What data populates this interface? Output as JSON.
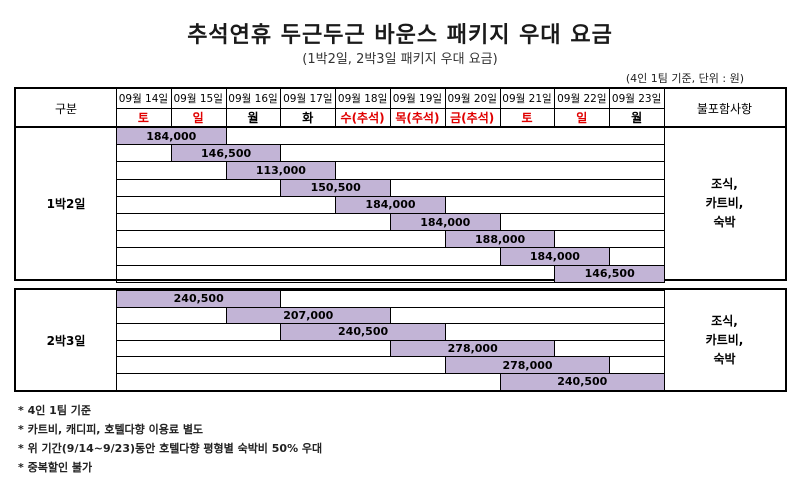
{
  "title": "추석연휴 두근두근 바운스 패키지 우대 요금",
  "subtitle": "(1박2일, 2박3일 패키지 우대 요금)",
  "basis": "(4인 1팀 기준, 단위 : 원)",
  "header": {
    "category_label": "구분",
    "excluded_label": "불포함사항",
    "dates": [
      "09월 14일",
      "09월 15일",
      "09월 16일",
      "09월 17일",
      "09월 18일",
      "09월 19일",
      "09월 20일",
      "09월 21일",
      "09월 22일",
      "09월 23일"
    ],
    "days": [
      "토",
      "일",
      "월",
      "화",
      "수(추석)",
      "목(추석)",
      "금(추석)",
      "토",
      "일",
      "월"
    ],
    "day_red": [
      true,
      true,
      false,
      false,
      true,
      true,
      true,
      true,
      true,
      false
    ]
  },
  "packages": [
    {
      "label": "1박2일",
      "excluded": [
        "조식,",
        "카트비,",
        "숙박"
      ],
      "rows": [
        {
          "start": 0,
          "span": 2,
          "price": "184,000"
        },
        {
          "start": 1,
          "span": 2,
          "price": "146,500"
        },
        {
          "start": 2,
          "span": 2,
          "price": "113,000"
        },
        {
          "start": 3,
          "span": 2,
          "price": "150,500"
        },
        {
          "start": 4,
          "span": 2,
          "price": "184,000"
        },
        {
          "start": 5,
          "span": 2,
          "price": "184,000"
        },
        {
          "start": 6,
          "span": 2,
          "price": "188,000"
        },
        {
          "start": 7,
          "span": 2,
          "price": "184,000"
        },
        {
          "start": 8,
          "span": 2,
          "price": "146,500"
        }
      ]
    },
    {
      "label": "2박3일",
      "excluded": [
        "조식,",
        "카트비,",
        "숙박"
      ],
      "rows": [
        {
          "start": 0,
          "span": 3,
          "price": "240,500"
        },
        {
          "start": 2,
          "span": 3,
          "price": "207,000"
        },
        {
          "start": 3,
          "span": 3,
          "price": "240,500"
        },
        {
          "start": 5,
          "span": 3,
          "price": "278,000"
        },
        {
          "start": 6,
          "span": 3,
          "price": "278,000"
        },
        {
          "start": 7,
          "span": 3,
          "price": "240,500"
        }
      ]
    }
  ],
  "notes": [
    "* 4인 1팀 기준",
    "* 카트비, 캐디피, 호텔다향 이용료 별도",
    "* 위 기간(9/14~9/23)동안 호텔다향 평형별 숙박비 50% 우대",
    "* 중복할인 불가"
  ]
}
